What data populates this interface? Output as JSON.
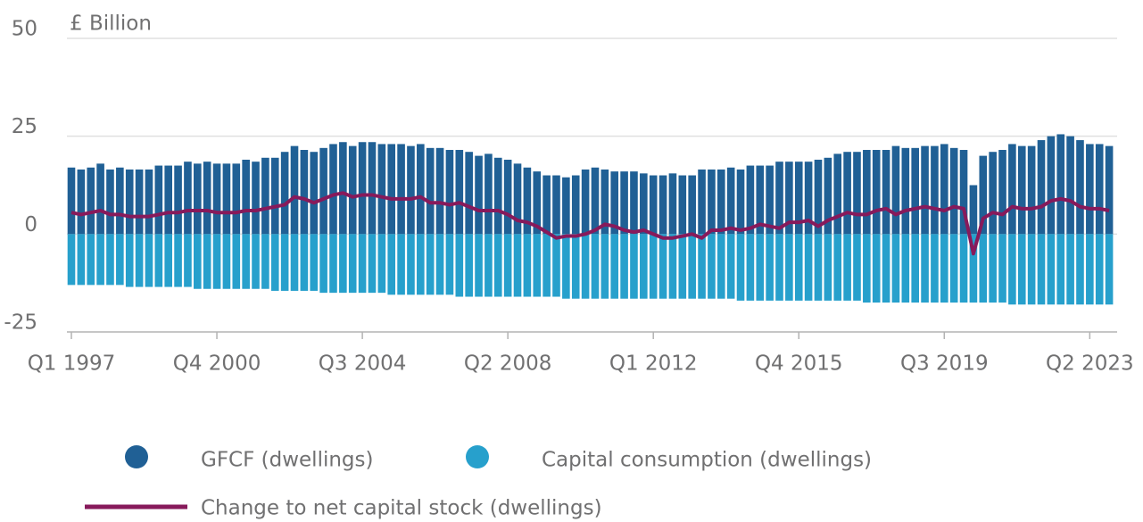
{
  "chart_data": {
    "type": "bar",
    "stacked": true,
    "grid": true,
    "ylabel": "£ Billion",
    "ylim": [
      -25,
      50
    ],
    "yticks": [
      -25,
      0,
      25,
      50
    ],
    "categories": [
      "Q1 1997",
      null,
      null,
      null,
      null,
      null,
      null,
      null,
      null,
      null,
      null,
      null,
      null,
      null,
      null,
      "Q4 2000",
      null,
      null,
      null,
      null,
      null,
      null,
      null,
      null,
      null,
      null,
      null,
      null,
      null,
      null,
      "Q3 2004",
      null,
      null,
      null,
      null,
      null,
      null,
      null,
      null,
      null,
      null,
      null,
      null,
      null,
      null,
      "Q2 2008",
      null,
      null,
      null,
      null,
      null,
      null,
      null,
      null,
      null,
      null,
      null,
      null,
      null,
      null,
      "Q1 2012",
      null,
      null,
      null,
      null,
      null,
      null,
      null,
      null,
      null,
      null,
      null,
      null,
      null,
      null,
      "Q4 2015",
      null,
      null,
      null,
      null,
      null,
      null,
      null,
      null,
      null,
      null,
      null,
      null,
      null,
      null,
      "Q3 2019",
      null,
      null,
      null,
      null,
      null,
      null,
      null,
      null,
      null,
      null,
      null,
      null,
      null,
      null,
      "Q2 2023",
      null,
      null
    ],
    "series": [
      {
        "name": "GFCF (dwellings)",
        "color": "#206095",
        "values": [
          17,
          16.5,
          17,
          18,
          16.5,
          17,
          16.5,
          16.5,
          16.5,
          17.5,
          17.5,
          17.5,
          18.5,
          18,
          18.5,
          18,
          18,
          18,
          19,
          18.5,
          19.5,
          19.5,
          21,
          22.5,
          21.5,
          21,
          22,
          23,
          23.5,
          22.5,
          23.5,
          23.5,
          23,
          23,
          23,
          22.5,
          23,
          22,
          22,
          21.5,
          21.5,
          21,
          20,
          20.5,
          19.5,
          19,
          18,
          17,
          16,
          15,
          15,
          14.5,
          15,
          16.5,
          17,
          16.5,
          16,
          16,
          16,
          15.5,
          15,
          15,
          15.5,
          15,
          15,
          16.5,
          16.5,
          16.5,
          17,
          16.5,
          17.5,
          17.5,
          17.5,
          18.5,
          18.5,
          18.5,
          18.5,
          19,
          19.5,
          20.5,
          21,
          21,
          21.5,
          21.5,
          21.5,
          22.5,
          22,
          22,
          22.5,
          22.5,
          23,
          22,
          21.5,
          12.5,
          20,
          21,
          21.5,
          23,
          22.5,
          22.5,
          24,
          25,
          25.5,
          25,
          24,
          23,
          23,
          22.5
        ]
      },
      {
        "name": "Capital consumption (dwellings)",
        "color": "#27a0cc",
        "values": [
          -13,
          -13,
          -13,
          -13,
          -13,
          -13,
          -13.5,
          -13.5,
          -13.5,
          -13.5,
          -13.5,
          -13.5,
          -13.5,
          -14,
          -14,
          -14,
          -14,
          -14,
          -14,
          -14,
          -14,
          -14.5,
          -14.5,
          -14.5,
          -14.5,
          -14.5,
          -15,
          -15,
          -15,
          -15,
          -15,
          -15,
          -15,
          -15.5,
          -15.5,
          -15.5,
          -15.5,
          -15.5,
          -15.5,
          -15.5,
          -16,
          -16,
          -16,
          -16,
          -16,
          -16,
          -16,
          -16,
          -16,
          -16,
          -16,
          -16.5,
          -16.5,
          -16.5,
          -16.5,
          -16.5,
          -16.5,
          -16.5,
          -16.5,
          -16.5,
          -16.5,
          -16.5,
          -16.5,
          -16.5,
          -16.5,
          -16.5,
          -16.5,
          -16.5,
          -16.5,
          -17,
          -17,
          -17,
          -17,
          -17,
          -17,
          -17,
          -17,
          -17,
          -17,
          -17,
          -17,
          -17,
          -17.5,
          -17.5,
          -17.5,
          -17.5,
          -17.5,
          -17.5,
          -17.5,
          -17.5,
          -17.5,
          -17.5,
          -17.5,
          -17.5,
          -17.5,
          -17.5,
          -17.5,
          -18,
          -18,
          -18,
          -18,
          -18,
          -18,
          -18,
          -18,
          -18,
          -18,
          -18
        ]
      },
      {
        "name": "Change to net capital stock (dwellings)",
        "color": "#871a5b",
        "type": "line",
        "values": [
          5.5,
          5,
          5.5,
          6,
          5,
          5,
          4.5,
          4.5,
          4.5,
          5,
          5.5,
          5.5,
          6,
          6,
          6,
          5.5,
          5.5,
          5.5,
          6,
          6,
          6.5,
          7,
          7.5,
          9.5,
          9,
          8,
          9,
          10,
          10.5,
          9.5,
          10,
          10,
          9.5,
          9,
          9,
          9,
          9.5,
          8,
          8,
          7.5,
          8,
          7,
          6,
          6,
          6,
          5,
          3.5,
          3,
          2,
          0.5,
          -1,
          -0.5,
          -0.5,
          0,
          1,
          2.5,
          2,
          1,
          0.5,
          1,
          0,
          -1,
          -1,
          -0.5,
          0,
          -1,
          1,
          1,
          1.5,
          1,
          1.5,
          2.5,
          2,
          1.5,
          3,
          3,
          3.5,
          2,
          3.5,
          4.5,
          5.5,
          5,
          5,
          6,
          6.5,
          5,
          6,
          6.5,
          7,
          6.5,
          6,
          7,
          6.5,
          -5,
          4,
          5.5,
          5,
          7,
          6.5,
          6.5,
          7,
          8.5,
          9,
          8.5,
          7,
          6.5,
          6.5,
          6
        ]
      }
    ]
  }
}
